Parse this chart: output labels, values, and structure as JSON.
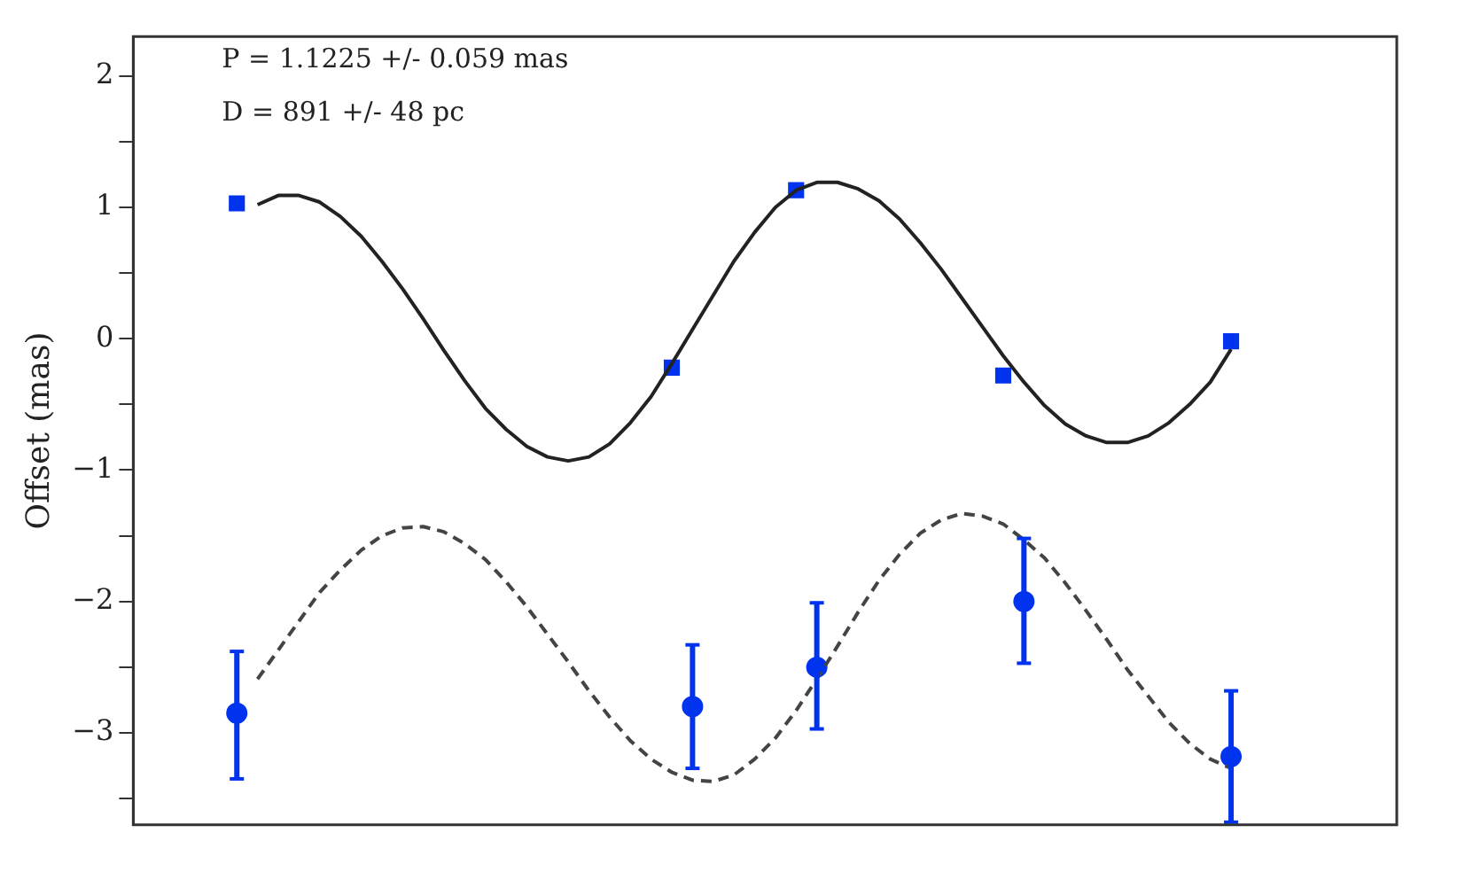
{
  "chart_data": {
    "type": "line",
    "ylabel": "Offset (mas)",
    "annotations": [
      "P = 1.1225 +/- 0.059 mas",
      "D = 891 +/- 48 pc"
    ],
    "categories": [
      null,
      null,
      null,
      null,
      null,
      null,
      null,
      null,
      null,
      null,
      null,
      null,
      null,
      null,
      null,
      null,
      null,
      null,
      null,
      null,
      null,
      null,
      null,
      null,
      null,
      null,
      null,
      null,
      null,
      null,
      null,
      null,
      null,
      null,
      null,
      null,
      null,
      null,
      null,
      null,
      null,
      null,
      null,
      null,
      null,
      null,
      null,
      null,
      null,
      null,
      null,
      null,
      null,
      null,
      null,
      null,
      null,
      null,
      null,
      null,
      null,
      null
    ],
    "ylim": [
      -3.7,
      2.3
    ],
    "yticks": [
      {
        "value": -3.5,
        "label": null
      },
      -3,
      {
        "value": -2.5,
        "label": null
      },
      -2,
      {
        "value": -1.5,
        "label": null
      },
      -1,
      {
        "value": -0.5,
        "label": null
      },
      0,
      {
        "value": 0.5,
        "label": null
      },
      1,
      {
        "value": 1.5,
        "label": null
      },
      2
    ],
    "tick_labels": "y",
    "grid": false,
    "legend": false,
    "series": [
      {
        "type": "line",
        "color": "#222222",
        "line_style": "solid",
        "marker": "none",
        "values": [
          null,
          null,
          null,
          null,
          null,
          null,
          1.02,
          1.09,
          1.09,
          1.04,
          0.93,
          0.78,
          0.59,
          0.38,
          0.15,
          -0.09,
          -0.32,
          -0.53,
          -0.69,
          -0.82,
          -0.9,
          -0.93,
          -0.9,
          -0.8,
          -0.64,
          -0.44,
          -0.19,
          0.07,
          0.33,
          0.59,
          0.81,
          1.0,
          1.13,
          1.19,
          1.19,
          1.14,
          1.05,
          0.91,
          0.73,
          0.53,
          0.31,
          0.09,
          -0.13,
          -0.33,
          -0.51,
          -0.65,
          -0.74,
          -0.79,
          -0.79,
          -0.74,
          -0.64,
          -0.5,
          -0.33,
          -0.08,
          null,
          null,
          null,
          null,
          null,
          null,
          null,
          null
        ]
      },
      {
        "type": "line",
        "color": "#444444",
        "line_style": "dashed",
        "marker": "none",
        "values": [
          null,
          null,
          null,
          null,
          null,
          null,
          -2.59,
          -2.37,
          -2.15,
          -1.93,
          -1.76,
          -1.61,
          -1.5,
          -1.44,
          -1.43,
          -1.47,
          -1.56,
          -1.68,
          -1.85,
          -2.04,
          -2.25,
          -2.46,
          -2.68,
          -2.88,
          -3.06,
          -3.2,
          -3.3,
          -3.36,
          -3.37,
          -3.32,
          -3.2,
          -3.04,
          -2.83,
          -2.59,
          -2.34,
          -2.08,
          -1.84,
          -1.64,
          -1.48,
          -1.38,
          -1.33,
          -1.35,
          -1.41,
          -1.53,
          -1.67,
          -1.86,
          -2.07,
          -2.29,
          -2.52,
          -2.72,
          -2.92,
          -3.08,
          -3.2,
          -3.27,
          null,
          null,
          null,
          null,
          null,
          null,
          null,
          null
        ]
      },
      {
        "type": "scatter",
        "color": "#0033ee",
        "marker": "square",
        "values": [
          null,
          null,
          null,
          null,
          null,
          1.03,
          null,
          null,
          null,
          null,
          null,
          null,
          null,
          null,
          null,
          null,
          null,
          null,
          null,
          null,
          null,
          null,
          null,
          null,
          null,
          null,
          -0.22,
          null,
          null,
          null,
          null,
          null,
          1.13,
          null,
          null,
          null,
          null,
          null,
          null,
          null,
          null,
          null,
          -0.28,
          null,
          null,
          null,
          null,
          null,
          null,
          null,
          null,
          null,
          null,
          -0.02,
          null,
          null,
          null,
          null,
          null,
          null,
          null,
          null
        ]
      },
      {
        "type": "scatter",
        "color": "#0033ee",
        "marker": "circle",
        "values": [
          null,
          null,
          null,
          null,
          null,
          -2.85,
          null,
          null,
          null,
          null,
          null,
          null,
          null,
          null,
          null,
          null,
          null,
          null,
          null,
          null,
          null,
          null,
          null,
          null,
          null,
          null,
          null,
          -2.8,
          null,
          null,
          null,
          null,
          null,
          -2.5,
          null,
          null,
          null,
          null,
          null,
          null,
          null,
          null,
          null,
          -2.0,
          null,
          null,
          null,
          null,
          null,
          null,
          null,
          null,
          null,
          -3.18,
          null,
          null,
          null,
          null,
          null,
          null,
          null,
          null
        ],
        "errors": [
          null,
          null,
          null,
          null,
          null,
          [
            -3.35,
            -2.38
          ],
          null,
          null,
          null,
          null,
          null,
          null,
          null,
          null,
          null,
          null,
          null,
          null,
          null,
          null,
          null,
          null,
          null,
          null,
          null,
          null,
          null,
          [
            -3.27,
            -2.33
          ],
          null,
          null,
          null,
          null,
          null,
          [
            -2.97,
            -2.01
          ],
          null,
          null,
          null,
          null,
          null,
          null,
          null,
          null,
          null,
          [
            -2.47,
            -1.52
          ],
          null,
          null,
          null,
          null,
          null,
          null,
          null,
          null,
          null,
          [
            -3.68,
            -2.68
          ],
          null,
          null,
          null,
          null,
          null,
          null,
          null,
          null
        ]
      }
    ]
  }
}
